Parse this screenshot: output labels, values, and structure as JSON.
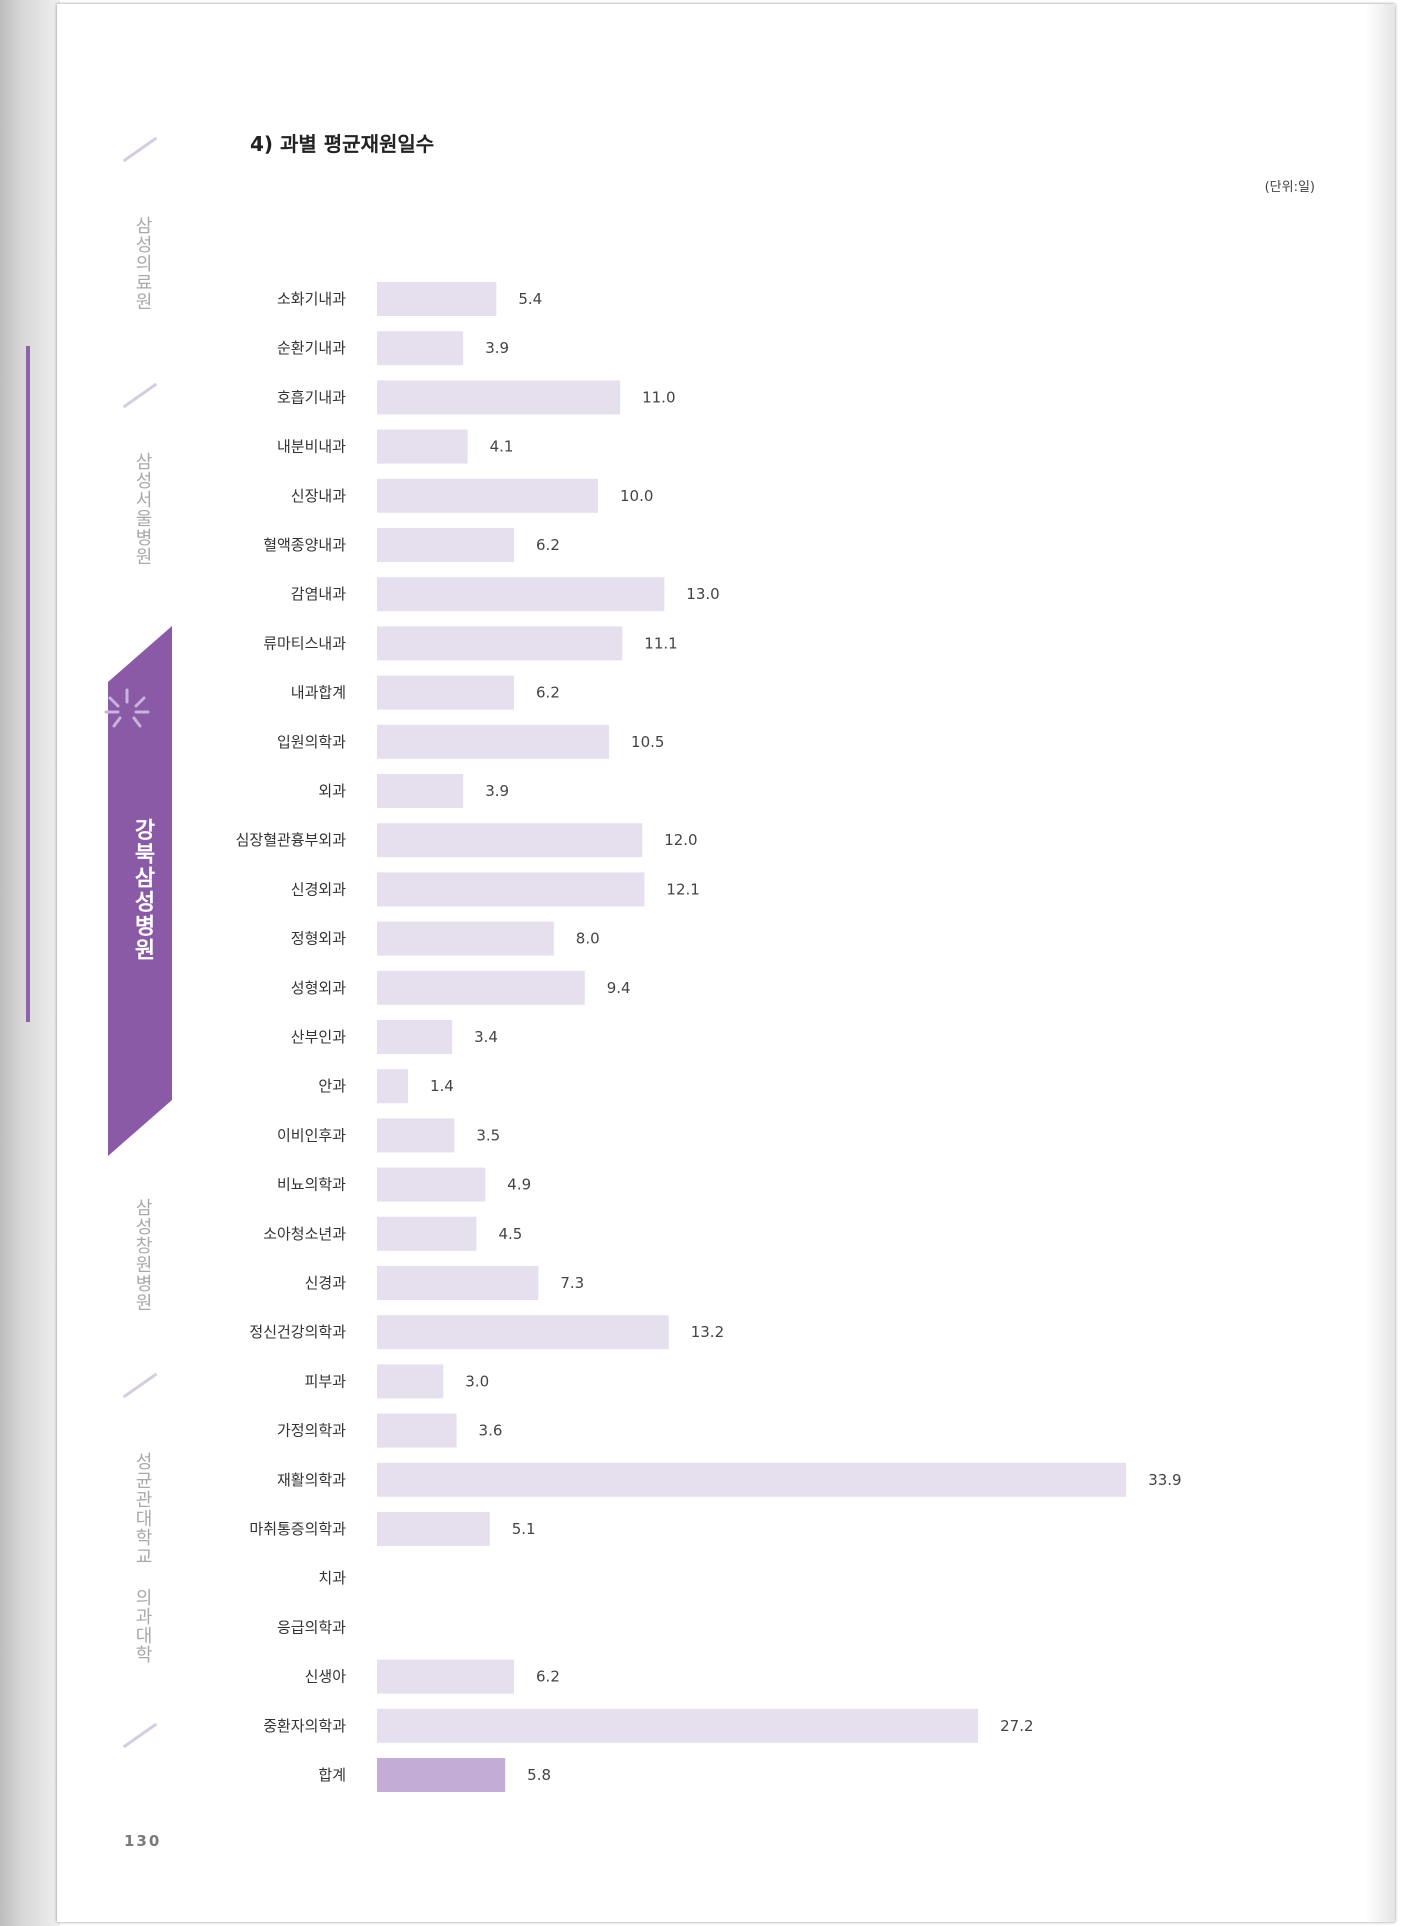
{
  "title": "4) 과별 평균재원일수",
  "unit": "(단위:일)",
  "page_number": "130",
  "sidebar": {
    "items": [
      {
        "label": "삼성의료원"
      },
      {
        "label": "삼성서울병원"
      },
      {
        "label": "강북삼성병원",
        "active": true
      },
      {
        "label": "삼성창원병원"
      },
      {
        "label": "성균관대학교 의과대학"
      }
    ],
    "accent_color": "#8a5aa6"
  },
  "chart_data": {
    "type": "bar",
    "orientation": "horizontal",
    "title": "4) 과별 평균재원일수",
    "unit": "(단위:일)",
    "categories": [
      "소화기내과",
      "순환기내과",
      "호흡기내과",
      "내분비내과",
      "신장내과",
      "혈액종양내과",
      "감염내과",
      "류마티스내과",
      "내과합계",
      "입원의학과",
      "외과",
      "심장혈관흉부외과",
      "신경외과",
      "정형외과",
      "성형외과",
      "산부인과",
      "안과",
      "이비인후과",
      "비뇨의학과",
      "소아청소년과",
      "신경과",
      "정신건강의학과",
      "피부과",
      "가정의학과",
      "재활의학과",
      "마취통증의학과",
      "치과",
      "응급의학과",
      "신생아",
      "중환자의학과",
      "합계"
    ],
    "values": [
      5.4,
      3.9,
      11.0,
      4.1,
      10.0,
      6.2,
      13.0,
      11.1,
      6.2,
      10.5,
      3.9,
      12.0,
      12.1,
      8.0,
      9.4,
      3.4,
      1.4,
      3.5,
      4.9,
      4.5,
      7.3,
      13.2,
      3.0,
      3.6,
      33.9,
      5.1,
      null,
      null,
      6.2,
      27.2,
      5.8
    ],
    "value_labels": [
      "5.4",
      "3.9",
      "11.0",
      "4.1",
      "10.0",
      "6.2",
      "13.0",
      "11.1",
      "6.2",
      "10.5",
      "3.9",
      "12.0",
      "12.1",
      "8.0",
      "9.4",
      "3.4",
      "1.4",
      "3.5",
      "4.9",
      "4.5",
      "7.3",
      "13.2",
      "3.0",
      "3.6",
      "33.9",
      "5.1",
      "",
      "",
      "6.2",
      "27.2",
      "5.8"
    ],
    "bar_color": "#e5dfee",
    "total_bar_color": "#c3acd6",
    "grid": false,
    "legend": "none"
  }
}
